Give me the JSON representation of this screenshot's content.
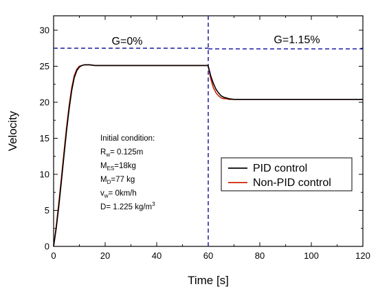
{
  "chart_data": {
    "type": "line",
    "xlabel": "Time [s]",
    "ylabel": "Velocity",
    "xlim": [
      0,
      120
    ],
    "ylim": [
      0,
      32
    ],
    "xticks": [
      0,
      20,
      40,
      60,
      80,
      100,
      120
    ],
    "yticks": [
      0,
      5,
      10,
      15,
      20,
      25,
      30
    ],
    "grid": false,
    "legend_position": "lower-right",
    "series": [
      {
        "name": "PID control",
        "color": "#000000",
        "x": [
          0,
          1,
          2,
          3,
          4,
          5,
          6,
          7,
          8,
          9,
          10,
          11,
          12,
          14,
          16,
          20,
          30,
          40,
          50,
          59.9,
          60,
          61,
          62,
          63,
          64,
          65,
          66,
          67,
          68,
          70,
          72,
          80,
          100,
          120
        ],
        "y": [
          0,
          2.5,
          5.5,
          9.0,
          12.5,
          16.0,
          19.0,
          21.6,
          23.4,
          24.4,
          24.9,
          25.1,
          25.2,
          25.2,
          25.1,
          25.1,
          25.1,
          25.1,
          25.1,
          25.1,
          25.0,
          23.6,
          22.6,
          21.8,
          21.3,
          20.9,
          20.7,
          20.6,
          20.5,
          20.4,
          20.4,
          20.4,
          20.4,
          20.4
        ]
      },
      {
        "name": "Non-PID control",
        "color": "#cc2200",
        "x": [
          0,
          1,
          2,
          3,
          4,
          5,
          6,
          7,
          8,
          9,
          10,
          11,
          12,
          14,
          16,
          20,
          30,
          40,
          50,
          59.9,
          60,
          61,
          62,
          63,
          64,
          65,
          66,
          67,
          68,
          70,
          72,
          80,
          100,
          120
        ],
        "y": [
          0,
          2.8,
          6.0,
          9.5,
          13.0,
          16.5,
          19.5,
          22.0,
          23.7,
          24.6,
          25.0,
          25.1,
          25.2,
          25.2,
          25.1,
          25.1,
          25.1,
          25.1,
          25.1,
          25.1,
          25.0,
          23.2,
          22.0,
          21.3,
          20.9,
          20.6,
          20.5,
          20.5,
          20.4,
          20.4,
          20.4,
          20.4,
          20.4,
          20.4
        ]
      }
    ],
    "reference_lines": {
      "color": "#1a1aa0",
      "vertical_x": 60,
      "horizontal_left_y": 27.5,
      "horizontal_right_y": 27.4
    },
    "annotations": {
      "region_left": "G=0%",
      "region_right": "G=1.15%",
      "conditions_title": "Initial condition:",
      "conditions": [
        {
          "main": "R",
          "sub": "w",
          "rest": "= 0.125m",
          "sup": ""
        },
        {
          "main": "M",
          "sub": "ES",
          "rest": "=18kg",
          "sup": ""
        },
        {
          "main": "M",
          "sub": "D",
          "rest": "=77 kg",
          "sup": ""
        },
        {
          "main": "v",
          "sub": "w",
          "rest": "= 0km/h",
          "sup": ""
        },
        {
          "main": "D",
          "sub": "",
          "rest": "= 1.225 kg/m",
          "sup": "3"
        }
      ]
    }
  }
}
